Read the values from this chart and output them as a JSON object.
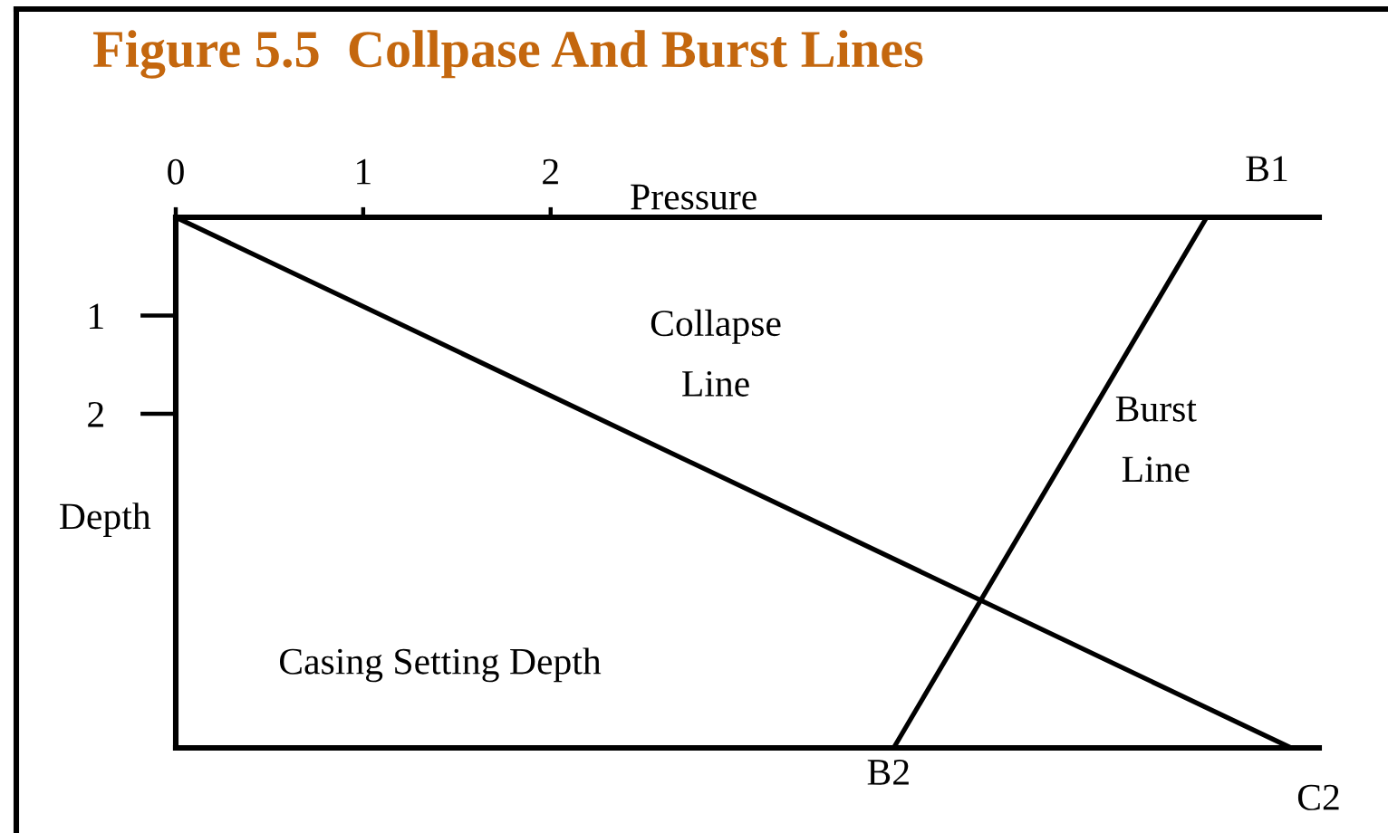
{
  "chart_data": {
    "type": "line",
    "title": "Figure 5.5  Collpase And Burst Lines",
    "xlabel": "Pressure",
    "ylabel": "Depth",
    "xlim": [
      0,
      6.1
    ],
    "ylim": [
      5.4,
      0
    ],
    "xticks": [
      0,
      1,
      2
    ],
    "yticks": [
      1,
      2
    ],
    "series": [
      {
        "name": "Collapse Line",
        "color": "#000000",
        "x": [
          0,
          5.95
        ],
        "values": [
          0,
          5.4
        ]
      },
      {
        "name": "Burst Line",
        "color": "#000000",
        "x": [
          5.5,
          3.83
        ],
        "values": [
          0,
          5.4
        ]
      }
    ],
    "ref_lines": [
      {
        "axis": "y",
        "value": 5.4,
        "label": "Casing Setting Depth",
        "color": "#000000"
      }
    ],
    "annotations": [
      {
        "text": "B1",
        "x": 5.5,
        "y": 0
      },
      {
        "text": "B2",
        "x": 3.83,
        "y": 5.4
      },
      {
        "text": "C2",
        "x": 5.95,
        "y": 5.4
      }
    ]
  }
}
